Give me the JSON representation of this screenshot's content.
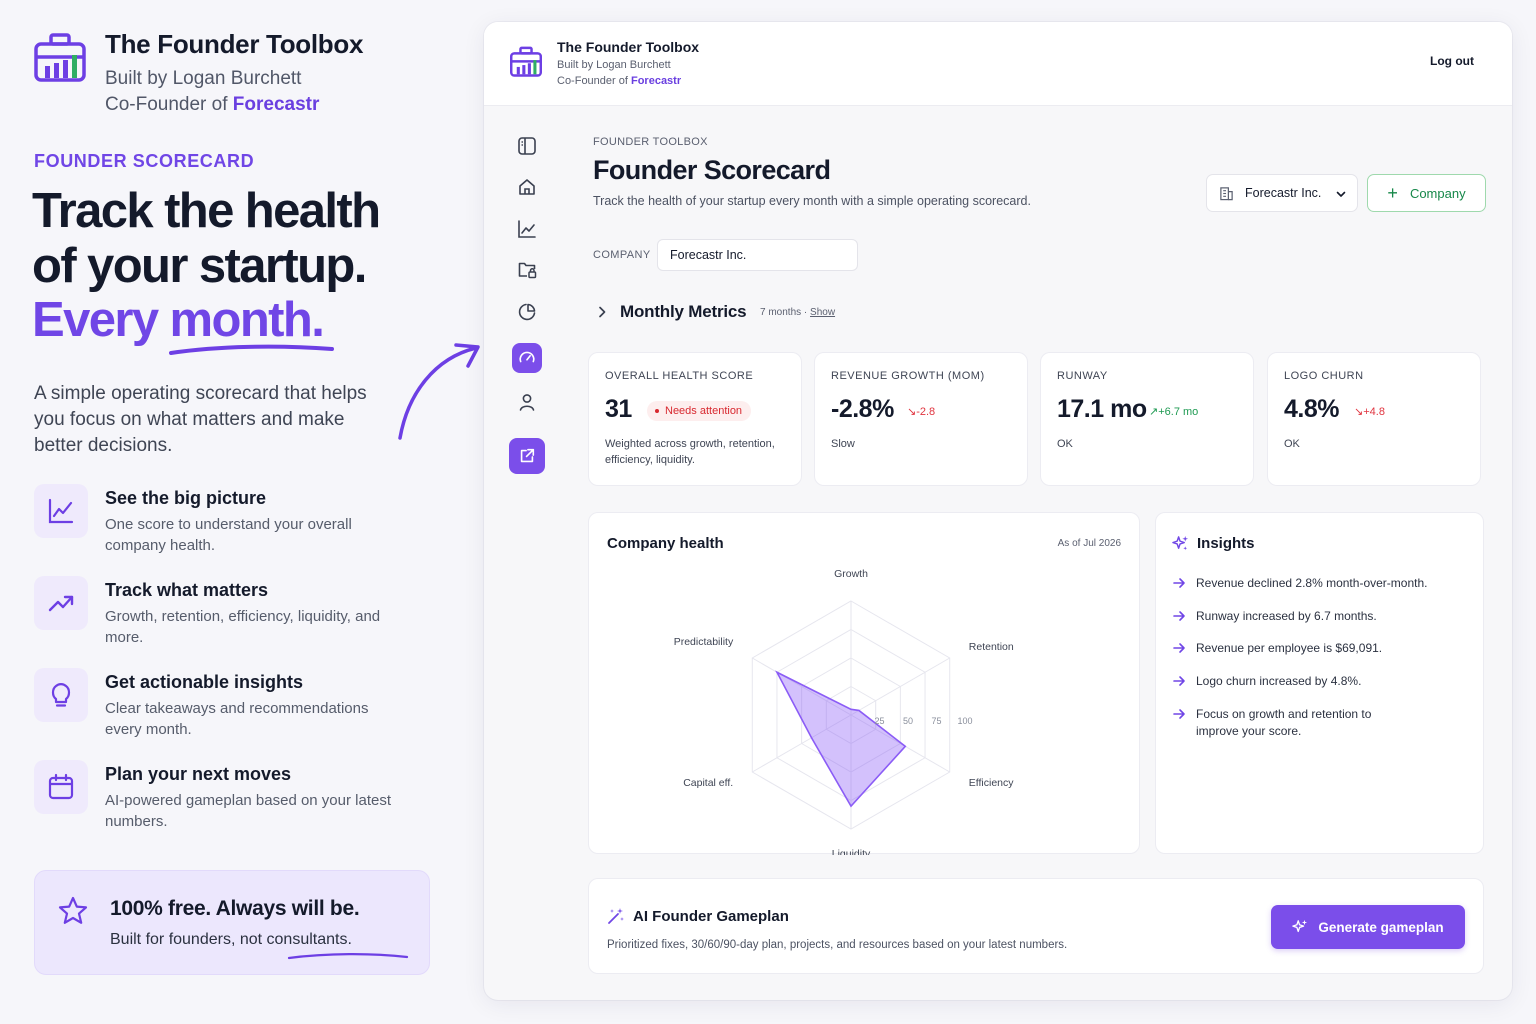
{
  "brand": {
    "title": "The Founder Toolbox",
    "built_by": "Built by Logan Burchett",
    "cofounder_prefix": "Co-Founder of ",
    "company": "Forecastr"
  },
  "hero": {
    "eyebrow": "FOUNDER SCORECARD",
    "line1": "Track the health",
    "line2": "of your startup.",
    "line3": "Every month.",
    "description": "A simple operating scorecard that helps you focus on what matters and make better decisions."
  },
  "features": [
    {
      "icon": "line-chart-icon",
      "title": "See the big picture",
      "desc": "One score to understand your overall company health."
    },
    {
      "icon": "trend-up-icon",
      "title": "Track what matters",
      "desc": "Growth, retention, efficiency, liquidity, and more."
    },
    {
      "icon": "lightbulb-icon",
      "title": "Get actionable insights",
      "desc": "Clear takeaways and recommendations every month."
    },
    {
      "icon": "calendar-icon",
      "title": "Plan your next moves",
      "desc": "AI-powered gameplan based on your latest numbers."
    }
  ],
  "free": {
    "title": "100% free. Always will be.",
    "subtitle": "Built for founders, not consultants."
  },
  "app": {
    "header": {
      "title": "The Founder Toolbox",
      "built_by": "Built by Logan Burchett",
      "cofounder_prefix": "Co-Founder of ",
      "company": "Forecastr",
      "logout": "Log out"
    },
    "sidebar": [
      {
        "icon": "panel-toggle-icon"
      },
      {
        "icon": "home-icon"
      },
      {
        "icon": "line-chart-icon"
      },
      {
        "icon": "folder-lock-icon"
      },
      {
        "icon": "pie-chart-icon"
      },
      {
        "icon": "gauge-icon",
        "active": true
      },
      {
        "icon": "user-icon"
      },
      {
        "icon": "external-link-icon"
      }
    ],
    "page": {
      "eyebrow": "FOUNDER TOOLBOX",
      "title": "Founder Scorecard",
      "description": "Track the health of your startup every month with a simple operating scorecard.",
      "company_select": "Forecastr Inc.",
      "add_company": "Company",
      "company_label": "COMPANY",
      "company_value": "Forecastr Inc."
    },
    "monthly_metrics": {
      "title": "Monthly Metrics",
      "meta": "7 months · ",
      "show": "Show"
    },
    "metrics": [
      {
        "label": "OVERALL HEALTH SCORE",
        "value": "31",
        "badge": "Needs attention",
        "note": "Weighted across growth, retention, efficiency, liquidity."
      },
      {
        "label": "REVENUE GROWTH (MOM)",
        "value": "-2.8%",
        "delta": "-2.8",
        "delta_dir": "down",
        "note": "Slow"
      },
      {
        "label": "RUNWAY",
        "value": "17.1 mo",
        "delta": "+6.7 mo",
        "delta_dir": "up",
        "note": "OK"
      },
      {
        "label": "LOGO CHURN",
        "value": "4.8%",
        "delta": "+4.8",
        "delta_dir": "down",
        "note": "OK"
      }
    ],
    "health": {
      "title": "Company health",
      "as_of": "As of Jul 2026"
    },
    "chart_data": {
      "type": "radar",
      "axes": [
        "Growth",
        "Retention",
        "Efficiency",
        "Liquidity",
        "Capital eff.",
        "Predictability"
      ],
      "ring_labels": [
        "25",
        "50",
        "75",
        "100"
      ],
      "rmax": 100,
      "series": [
        {
          "values": [
            5,
            8,
            55,
            80,
            40,
            75
          ]
        }
      ],
      "fill_color": "#8b5cf6"
    },
    "insights": {
      "title": "Insights",
      "items": [
        "Revenue declined 2.8% month-over-month.",
        "Runway increased by 6.7 months.",
        "Revenue per employee is $69,091.",
        "Logo churn increased by 4.8%.",
        "Focus on growth and retention to improve your score."
      ]
    },
    "gameplan": {
      "title": "AI Founder Gameplan",
      "description": "Prioritized fixes, 30/60/90-day plan, projects, and resources based on your latest numbers.",
      "button": "Generate gameplan"
    }
  },
  "colors": {
    "accent": "#7046e6",
    "button": "#7b4eea",
    "danger": "#e0343f",
    "success": "#1e9a52"
  }
}
